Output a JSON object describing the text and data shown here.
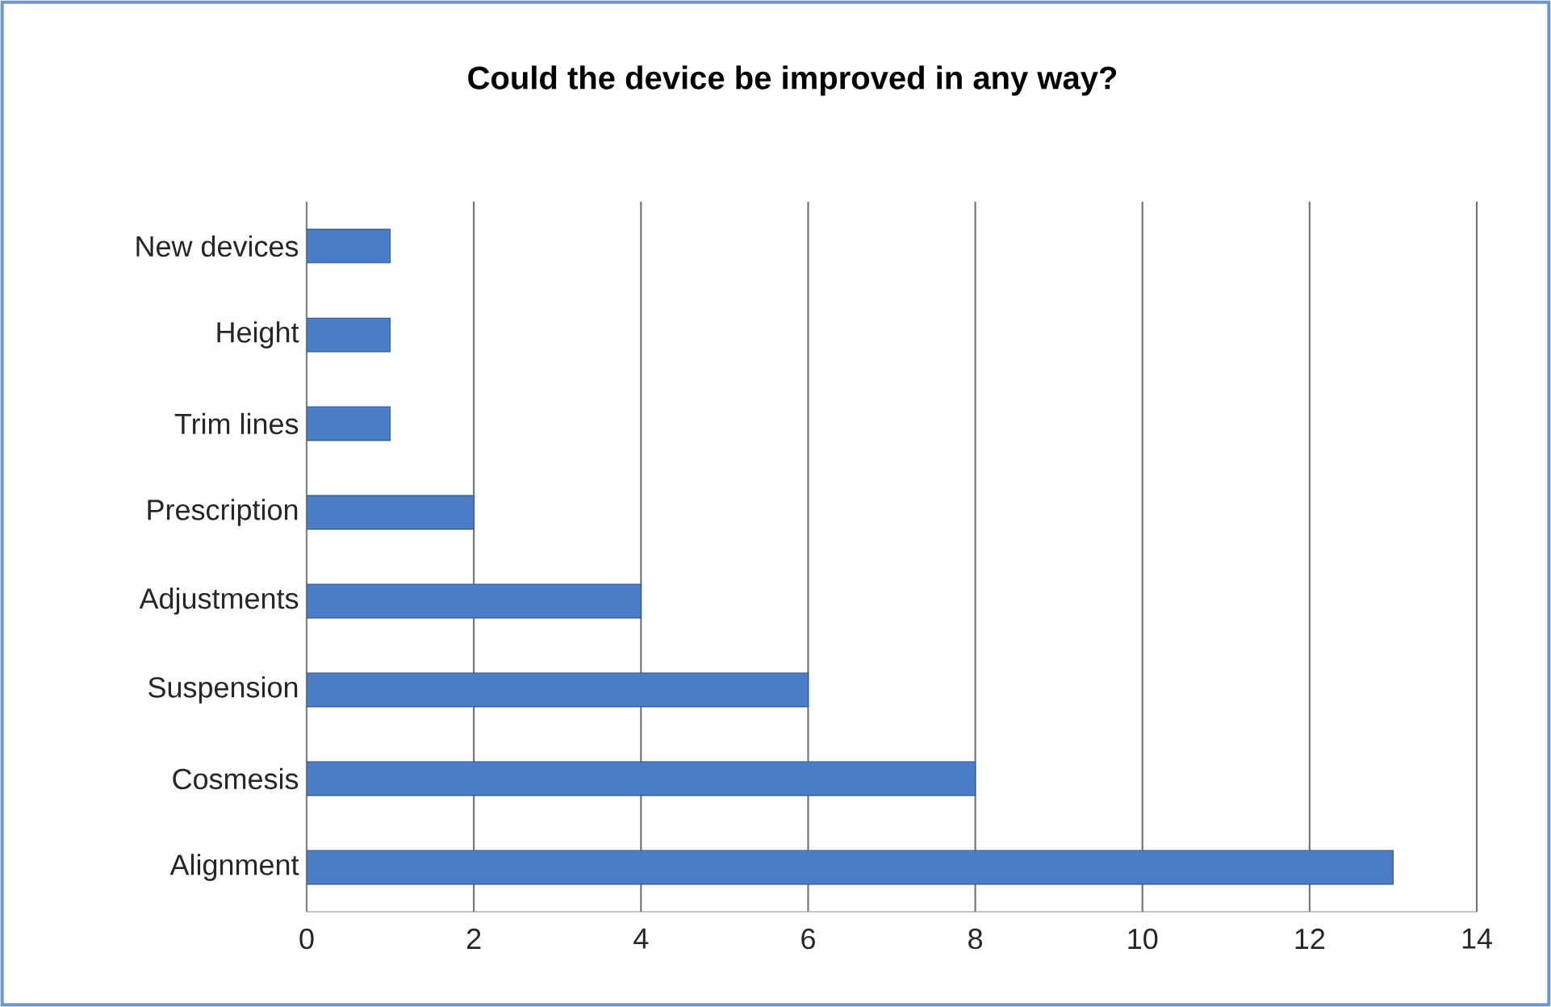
{
  "chart_data": {
    "type": "bar",
    "orientation": "horizontal",
    "title": "Could the device be improved in any way?",
    "categories": [
      "New devices",
      "Height",
      "Trim lines",
      "Prescription",
      "Adjustments",
      "Suspension",
      "Cosmesis",
      "Alignment"
    ],
    "values": [
      1,
      1,
      1,
      2,
      4,
      6,
      8,
      13
    ],
    "color": "#4a7dc6",
    "xlim": [
      0,
      14
    ],
    "xticks": [
      0,
      2,
      4,
      6,
      8,
      10,
      12,
      14
    ],
    "grid": "x"
  }
}
